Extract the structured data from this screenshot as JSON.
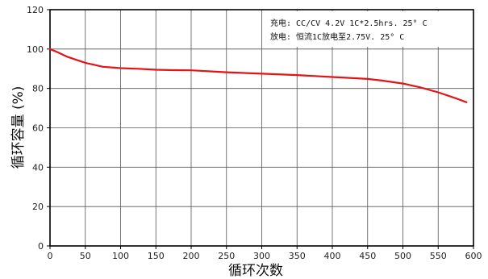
{
  "chart_data": {
    "type": "line",
    "title": "",
    "xlabel": "循环次数",
    "ylabel": "循环容量 (%)",
    "xlim": [
      0,
      600
    ],
    "ylim": [
      0,
      120
    ],
    "x_ticks": [
      0,
      50,
      100,
      150,
      200,
      250,
      300,
      350,
      400,
      450,
      500,
      550,
      600
    ],
    "y_ticks": [
      0,
      20,
      40,
      60,
      80,
      100,
      120
    ],
    "grid": true,
    "annotations": [
      "充电: CC/CV 4.2V 1C*2.5hrs.  25° C",
      "放电: 恒流1C放电至2.75V. 25° C"
    ],
    "series": [
      {
        "color": "#e31414",
        "x": [
          0,
          10,
          25,
          50,
          75,
          100,
          125,
          150,
          175,
          200,
          250,
          300,
          350,
          400,
          450,
          470,
          500,
          525,
          550,
          575,
          590
        ],
        "y": [
          100,
          98.5,
          96,
          93,
          91,
          90.3,
          90,
          89.5,
          89.3,
          89.2,
          88.2,
          87.5,
          86.8,
          85.8,
          84.8,
          84,
          82.5,
          80.5,
          78,
          75,
          73
        ]
      }
    ]
  }
}
